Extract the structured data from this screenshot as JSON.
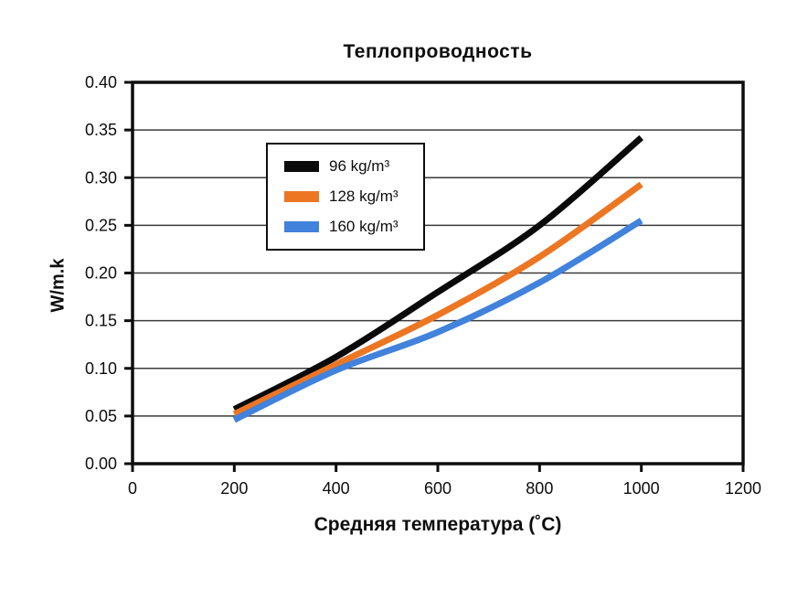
{
  "page": {
    "background": "#ffffff",
    "text_color": "#0d0d0d"
  },
  "chart_data": {
    "type": "line",
    "title": "Теплопроводность",
    "xlabel": "Средняя температура (˚C)",
    "ylabel": "W/m.k",
    "x": [
      200,
      400,
      600,
      800,
      1000
    ],
    "series": [
      {
        "name": "96 kg/m³",
        "color": "#0a0a0a",
        "values": [
          0.057,
          0.112,
          0.18,
          0.25,
          0.342
        ]
      },
      {
        "name": "128 kg/m³",
        "color": "#ED7623",
        "values": [
          0.052,
          0.104,
          0.156,
          0.217,
          0.293
        ]
      },
      {
        "name": "160 kg/m³",
        "color": "#4182DC",
        "values": [
          0.046,
          0.098,
          0.138,
          0.19,
          0.255
        ]
      }
    ],
    "xlim": [
      0,
      1200
    ],
    "ylim": [
      0,
      0.4
    ],
    "x_ticks": [
      0,
      200,
      400,
      600,
      800,
      1000,
      1200
    ],
    "y_ticks": [
      0.0,
      0.05,
      0.1,
      0.15,
      0.2,
      0.25,
      0.3,
      0.35,
      0.4
    ],
    "y_tick_decimals": 2,
    "grid": "horizontal",
    "legend_position": "upper-left-inside",
    "axis_color": "#0d0d0d",
    "gridline_color": "#3a3a3a"
  }
}
